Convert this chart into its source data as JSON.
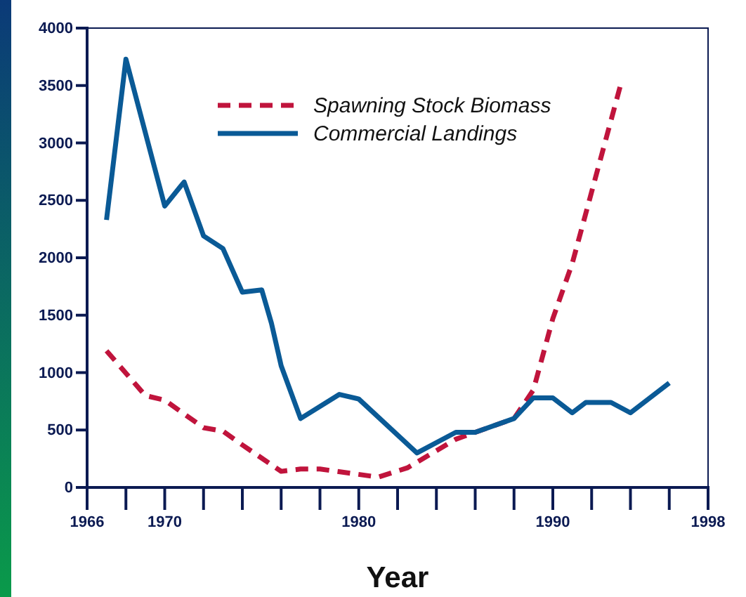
{
  "chart_data": {
    "type": "line",
    "xlabel": "Year",
    "xlim": [
      1966,
      1998
    ],
    "xticks": [
      1966,
      {
        "value": 1968,
        "label": null
      },
      1970,
      {
        "value": 1972,
        "label": null
      },
      {
        "value": 1974,
        "label": null
      },
      {
        "value": 1976,
        "label": null
      },
      {
        "value": 1978,
        "label": null
      },
      1980,
      {
        "value": 1982,
        "label": null
      },
      {
        "value": 1984,
        "label": null
      },
      {
        "value": 1986,
        "label": null
      },
      {
        "value": 1988,
        "label": null
      },
      1990,
      {
        "value": 1992,
        "label": null
      },
      {
        "value": 1994,
        "label": null
      },
      {
        "value": 1996,
        "label": null
      },
      1998
    ],
    "ylim": [
      0,
      4000
    ],
    "yticks": [
      0,
      500,
      1000,
      1500,
      2000,
      2500,
      3000,
      3500,
      4000
    ],
    "grid": false,
    "legend": "top",
    "series": [
      {
        "name": "Spawning Stock Biomass",
        "color": "#c0143c",
        "line_style": "dashed",
        "x": [
          1967,
          1969,
          1970,
          1972,
          1973,
          1974,
          1976,
          1977,
          1978,
          1981,
          1982.5,
          1985,
          1988,
          1989,
          1990,
          1991,
          1993.5
        ],
        "values": [
          1190,
          800,
          760,
          520,
          490,
          370,
          140,
          160,
          160,
          90,
          170,
          420,
          600,
          850,
          1470,
          1950,
          3510
        ]
      },
      {
        "name": "Commercial Landings",
        "color": "#0a5a96",
        "line_style": "solid",
        "x": [
          1967,
          1968,
          1970,
          1971,
          1972,
          1973,
          1974,
          1975,
          1975.5,
          1976,
          1977,
          1979,
          1980,
          1983,
          1985,
          1986,
          1988,
          1989,
          1990,
          1991,
          1991.7,
          1993,
          1994,
          1996
        ],
        "values": [
          2330,
          3730,
          2450,
          2660,
          2190,
          2080,
          1700,
          1720,
          1430,
          1060,
          600,
          810,
          770,
          300,
          480,
          480,
          600,
          780,
          780,
          650,
          740,
          740,
          650,
          910
        ]
      }
    ]
  }
}
